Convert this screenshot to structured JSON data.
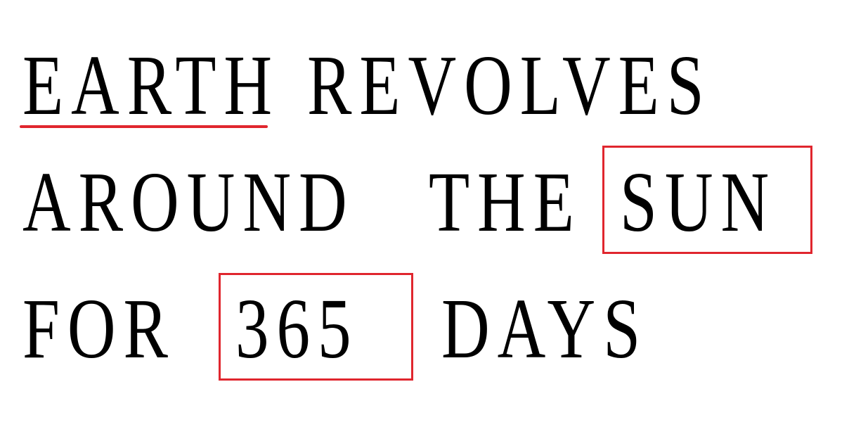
{
  "sentence": {
    "line1": {
      "earth": "EARTH",
      "revolves": "REVOLVES"
    },
    "line2": {
      "around": "AROUND",
      "the": "THE",
      "sun": "SUN"
    },
    "line3": {
      "for": "FOR",
      "number": "365",
      "days": "DAYS"
    }
  },
  "highlights": {
    "underlined_word": "EARTH",
    "boxed_words": [
      "SUN",
      "365"
    ],
    "color": "#e0262e"
  },
  "colors": {
    "ink": "#000000",
    "background": "#ffffff",
    "highlight": "#e0262e"
  }
}
